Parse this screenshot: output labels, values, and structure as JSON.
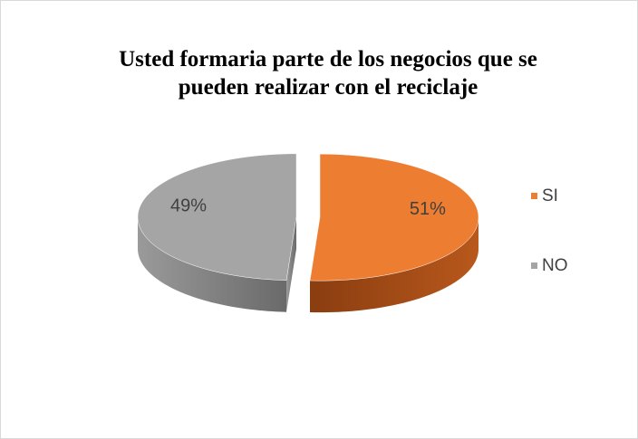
{
  "chart_data": {
    "type": "pie",
    "title": "Usted formaria parte de los negocios que se pueden realizar con el reciclaje",
    "categories": [
      "SI",
      "NO"
    ],
    "values": [
      51,
      49
    ],
    "value_labels": [
      "51%",
      "49%"
    ],
    "colors": [
      "#ed7d31",
      "#a5a5a5"
    ],
    "legend": "right"
  }
}
